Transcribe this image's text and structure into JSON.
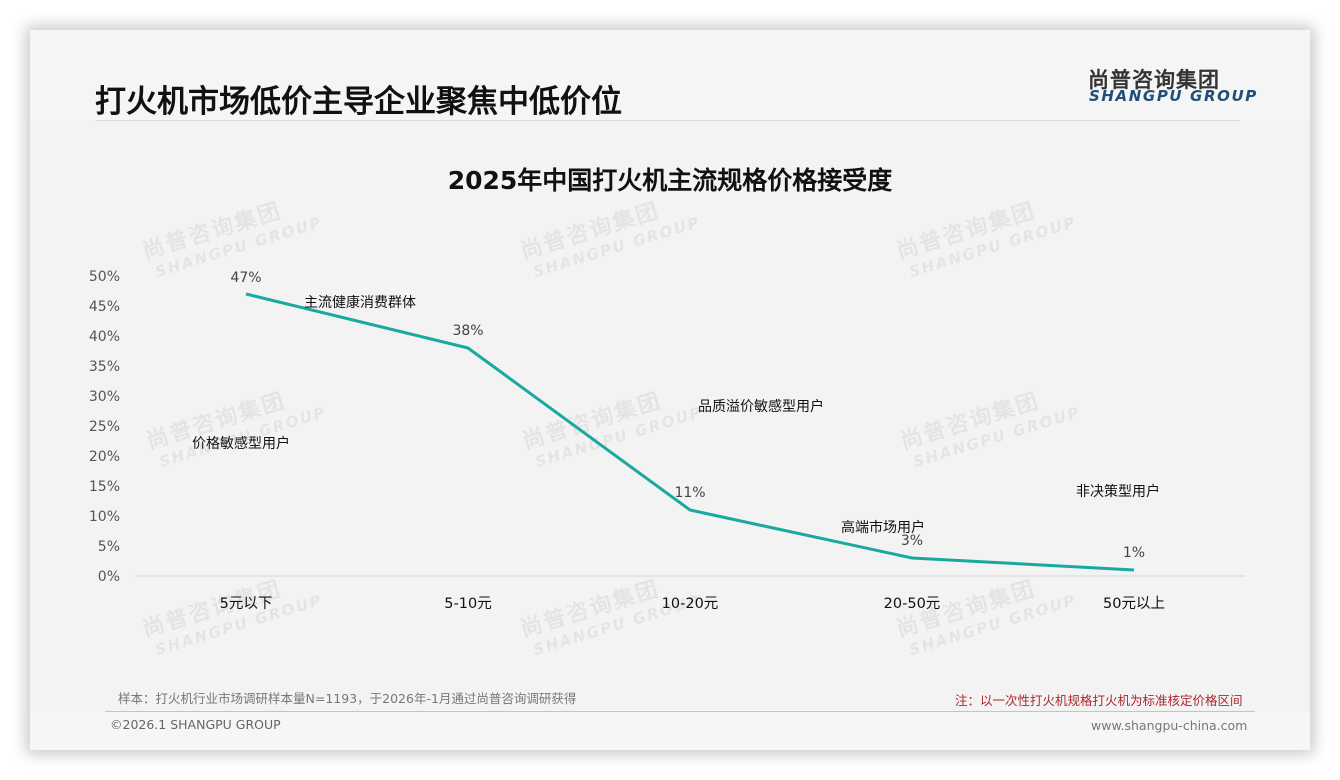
{
  "page": {
    "title": "打火机市场低价主导企业聚焦中低价位",
    "logo_cn": "尚普咨询集团",
    "logo_en": "SHANGPU GROUP",
    "watermark_cn": "尚普咨询集团",
    "watermark_en": "SHANGPU GROUP"
  },
  "chart_data": {
    "type": "line",
    "title": "2025年中国打火机主流规格价格接受度",
    "xlabel": "",
    "ylabel": "",
    "categories": [
      "5元以下",
      "5-10元",
      "10-20元",
      "20-50元",
      "50元以上"
    ],
    "values": [
      47,
      38,
      11,
      3,
      1
    ],
    "value_labels": [
      "47%",
      "38%",
      "11%",
      "3%",
      "1%"
    ],
    "ylim": [
      0,
      50
    ],
    "yticks": [
      "0%",
      "5%",
      "10%",
      "15%",
      "20%",
      "25%",
      "30%",
      "35%",
      "40%",
      "45%",
      "50%"
    ],
    "grid": false,
    "legend": "none",
    "series_color": "#1aa9a1",
    "annotations": [
      {
        "text": "价格敏感型用户",
        "near": "5元以下"
      },
      {
        "text": "主流健康消费群体",
        "near": "5-10元"
      },
      {
        "text": "品质溢价敏感型用户",
        "near": "10-20元"
      },
      {
        "text": "高端市场用户",
        "near": "20-50元"
      },
      {
        "text": "非决策型用户",
        "near": "50元以上"
      }
    ]
  },
  "footer": {
    "sample": "样本：打火机行业市场调研样本量N=1193，于2026年-1月通过尚普咨询调研获得",
    "note": "注：以一次性打火机规格打火机为标准核定价格区间",
    "copyright": "©2026.1 SHANGPU GROUP",
    "website": "www.shangpu-china.com",
    "note_color": "#b0262d"
  }
}
